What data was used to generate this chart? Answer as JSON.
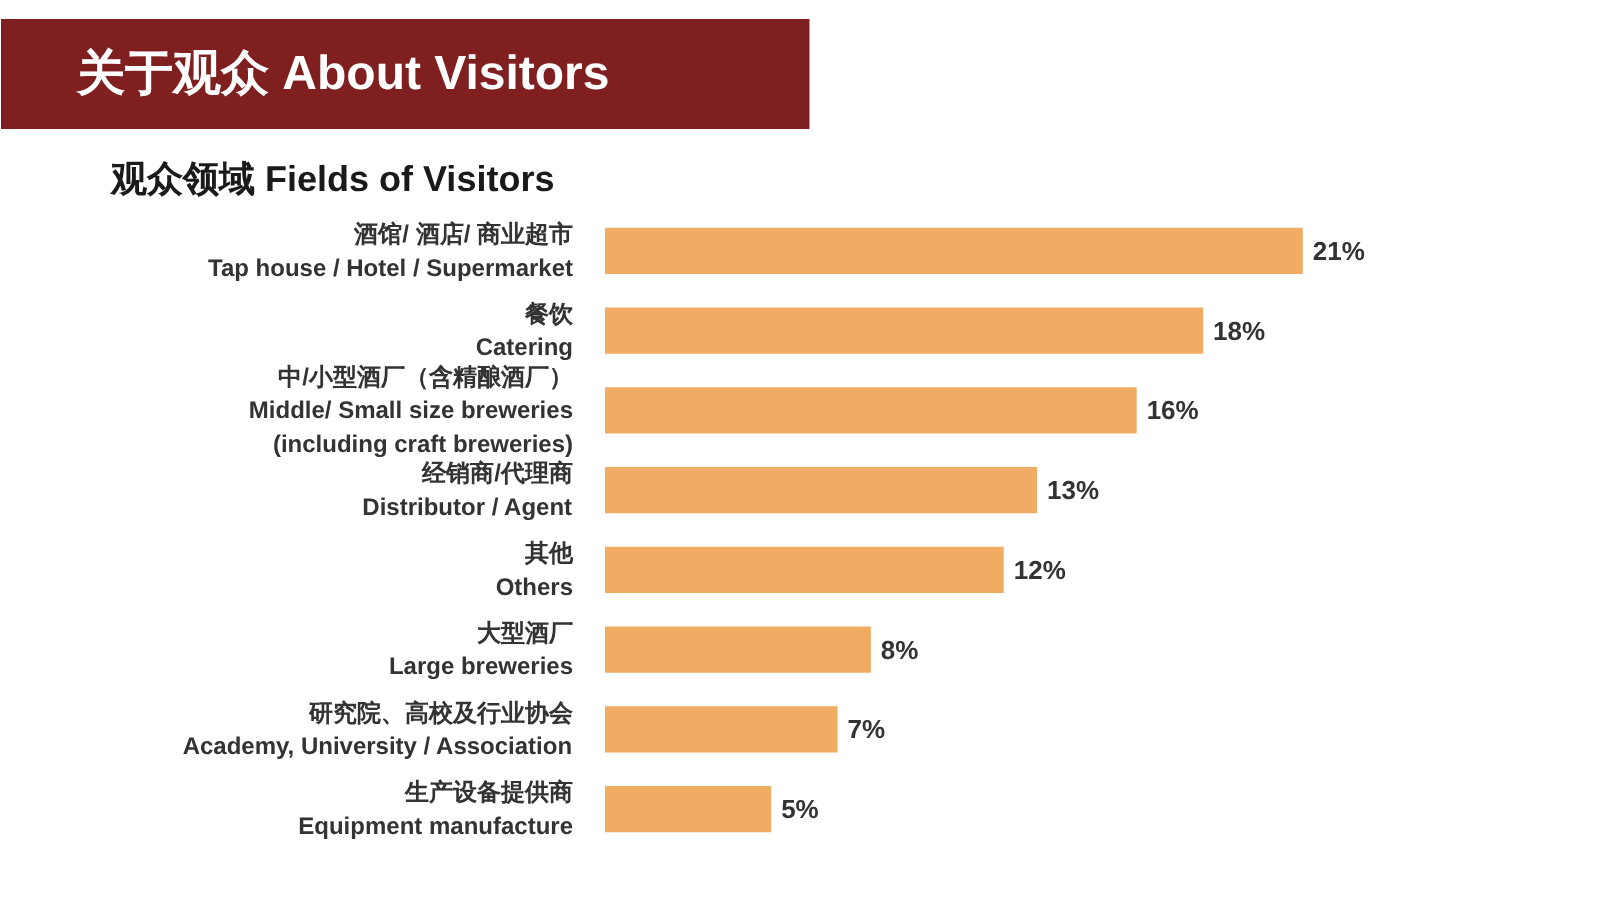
{
  "chart_data": {
    "type": "bar",
    "orientation": "horizontal",
    "title": "关于观众 About Visitors",
    "subtitle": "观众领域 Fields of Visitors",
    "categories": [
      "酒馆/ 酒店/ 商业超市\nTap house / Hotel / Supermarket",
      "餐饮\nCatering",
      "中/小型酒厂（含精酿酒厂）\nMiddle/ Small size breweries\n(including craft breweries)",
      "经销商/代理商\nDistributor / Agent",
      "其他\nOthers",
      "大型酒厂\nLarge breweries",
      "研究院、高校及行业协会\nAcademy, University / Association",
      "生产设备提供商\nEquipment manufacture"
    ],
    "values": [
      21,
      18,
      16,
      13,
      12,
      8,
      7,
      5
    ],
    "value_labels": [
      "21%",
      "18%",
      "16%",
      "13%",
      "12%",
      "8%",
      "7%",
      "5%"
    ],
    "color": "#f0ac62",
    "tick_labels": "y"
  }
}
